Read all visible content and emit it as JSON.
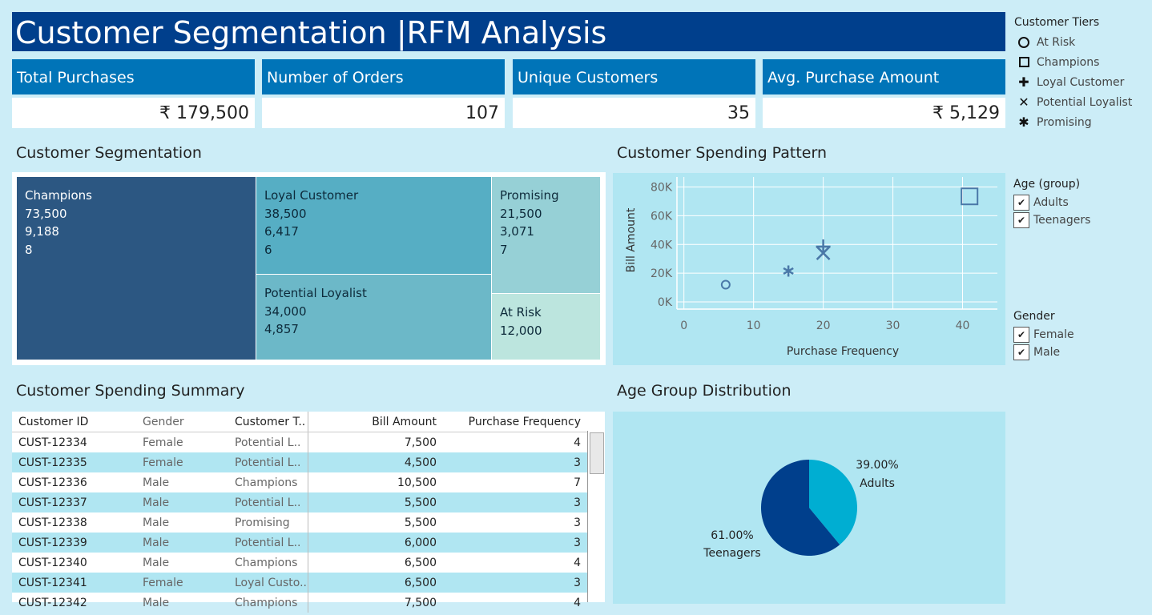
{
  "title": "Customer Segmentation |RFM Analysis",
  "kpis": [
    {
      "label": "Total Purchases",
      "value": "₹ 179,500"
    },
    {
      "label": "Number of Orders",
      "value": "107"
    },
    {
      "label": "Unique Customers",
      "value": "35"
    },
    {
      "label": "Avg. Purchase Amount",
      "value": "₹ 5,129"
    }
  ],
  "tier_legend": {
    "title": "Customer Tiers",
    "items": [
      {
        "label": "At Risk",
        "symbol": "circle"
      },
      {
        "label": "Champions",
        "symbol": "square"
      },
      {
        "label": "Loyal Customer",
        "symbol": "plus"
      },
      {
        "label": "Potential Loyalist",
        "symbol": "x"
      },
      {
        "label": "Promising",
        "symbol": "asterisk"
      }
    ]
  },
  "filters": {
    "age": {
      "title": "Age (group)",
      "items": [
        "Adults",
        "Teenagers"
      ]
    },
    "gender": {
      "title": "Gender",
      "items": [
        "Female",
        "Male"
      ]
    }
  },
  "sections": {
    "segmentation": "Customer Segmentation",
    "spending_pattern": "Customer Spending Pattern",
    "summary": "Customer Spending Summary",
    "age_dist": "Age Group Distribution"
  },
  "treemap": [
    {
      "name": "Champions",
      "total": "73,500",
      "avg": "9,188",
      "count": "8",
      "color": "#2c5782"
    },
    {
      "name": "Loyal Customer",
      "total": "38,500",
      "avg": "6,417",
      "count": "6",
      "color": "#56aec4"
    },
    {
      "name": "Potential Loyalist",
      "total": "34,000",
      "avg": "4,857",
      "count": "",
      "color": "#6cb8c8"
    },
    {
      "name": "Promising",
      "total": "21,500",
      "avg": "3,071",
      "count": "7",
      "color": "#96d0d6"
    },
    {
      "name": "At Risk",
      "total": "12,000",
      "avg": "",
      "count": "",
      "color": "#bce5de"
    }
  ],
  "chart_data": [
    {
      "type": "scatter",
      "title": "Customer Spending Pattern",
      "xlabel": "Purchase Frequency",
      "ylabel": "Bill Amount",
      "xlim": [
        -1,
        45
      ],
      "ylim": [
        -5000,
        87000
      ],
      "x_ticks": [
        "0",
        "10",
        "20",
        "30",
        "40"
      ],
      "y_ticks": [
        "0K",
        "20K",
        "40K",
        "60K",
        "80K"
      ],
      "points": [
        {
          "tier": "At Risk",
          "x": 6,
          "y": 12000,
          "symbol": "circle"
        },
        {
          "tier": "Promising",
          "x": 15,
          "y": 21500,
          "symbol": "asterisk"
        },
        {
          "tier": "Potential Loyalist",
          "x": 20,
          "y": 34000,
          "symbol": "x"
        },
        {
          "tier": "Loyal Customer",
          "x": 20,
          "y": 38500,
          "symbol": "plus"
        },
        {
          "tier": "Champions",
          "x": 41,
          "y": 73500,
          "symbol": "square"
        }
      ],
      "marker_color": "#4a78a8",
      "grid": true
    },
    {
      "type": "pie",
      "title": "Age Group Distribution",
      "slices": [
        {
          "label": "Adults",
          "pct_label": "39.00%",
          "value": 39,
          "color": "#00aed2"
        },
        {
          "label": "Teenagers",
          "pct_label": "61.00%",
          "value": 61,
          "color": "#003f8c"
        }
      ]
    }
  ],
  "table": {
    "headers": [
      "Customer ID",
      "Gender",
      "Customer T..",
      "Bill Amount",
      "Purchase Frequency"
    ],
    "rows": [
      [
        "CUST-12334",
        "Female",
        "Potential L..",
        "7,500",
        "4"
      ],
      [
        "CUST-12335",
        "Female",
        "Potential L..",
        "4,500",
        "3"
      ],
      [
        "CUST-12336",
        "Male",
        "Champions",
        "10,500",
        "7"
      ],
      [
        "CUST-12337",
        "Male",
        "Potential L..",
        "5,500",
        "3"
      ],
      [
        "CUST-12338",
        "Male",
        "Promising",
        "5,500",
        "3"
      ],
      [
        "CUST-12339",
        "Male",
        "Potential L..",
        "6,000",
        "3"
      ],
      [
        "CUST-12340",
        "Male",
        "Champions",
        "6,500",
        "4"
      ],
      [
        "CUST-12341",
        "Female",
        "Loyal Custo..",
        "6,500",
        "3"
      ],
      [
        "CUST-12342",
        "Male",
        "Champions",
        "7,500",
        "4"
      ]
    ]
  }
}
